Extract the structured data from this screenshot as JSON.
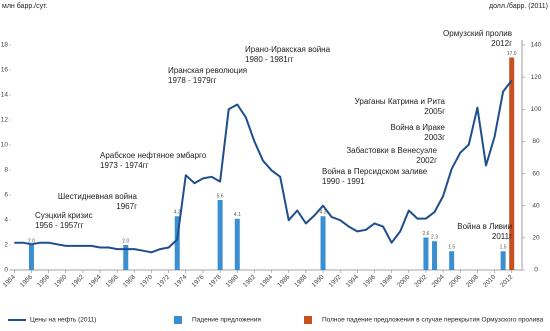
{
  "chart_data": {
    "type": "combo",
    "y_label": "млн барр./сут.",
    "y2_label": "долл./барр. (2011)",
    "xlim": [
      1953.5,
      2013.2
    ],
    "xticks": [
      1954,
      1956,
      1958,
      1960,
      1962,
      1964,
      1966,
      1968,
      1970,
      1972,
      1974,
      1976,
      1978,
      1980,
      1982,
      1984,
      1986,
      1988,
      1990,
      1992,
      1994,
      1996,
      1998,
      2000,
      2002,
      2004,
      2006,
      2008,
      2010,
      2012
    ],
    "ylim": [
      0,
      18
    ],
    "yticks": [
      0,
      2,
      4,
      6,
      8,
      10,
      12,
      14,
      16,
      18
    ],
    "y2lim": [
      0,
      140
    ],
    "y2ticks": [
      0,
      20,
      40,
      60,
      80,
      100,
      120,
      140
    ],
    "series": [
      {
        "name": "Цены на нефть (2011)",
        "type": "line",
        "axis": "y2",
        "color": "#1f4e8c",
        "x": [
          1954,
          1955,
          1956,
          1957,
          1958,
          1959,
          1960,
          1961,
          1962,
          1963,
          1964,
          1965,
          1966,
          1967,
          1968,
          1969,
          1970,
          1971,
          1972,
          1973,
          1974,
          1975,
          1976,
          1977,
          1978,
          1979,
          1980,
          1981,
          1982,
          1983,
          1984,
          1985,
          1986,
          1987,
          1988,
          1989,
          1990,
          1991,
          1992,
          1993,
          1994,
          1995,
          1996,
          1997,
          1998,
          1999,
          2000,
          2001,
          2002,
          2003,
          2004,
          2005,
          2006,
          2007,
          2008,
          2009,
          2010,
          2011,
          2012
        ],
        "values": [
          17,
          17,
          16,
          17,
          17,
          16,
          15,
          15,
          15,
          15,
          14,
          14,
          13,
          13,
          13,
          12,
          11,
          13,
          14,
          19,
          59,
          54,
          57,
          58,
          55,
          100,
          103,
          95,
          80,
          68,
          62,
          58,
          31,
          37,
          29,
          34,
          40,
          33,
          31,
          27,
          24,
          25,
          29,
          27,
          17,
          24,
          37,
          32,
          32,
          36,
          46,
          63,
          73,
          78,
          101,
          65,
          83,
          111,
          118
        ]
      },
      {
        "name": "Падение предложения",
        "type": "bar",
        "color": "#3a8fd0",
        "x": [
          1956,
          1967,
          1973,
          1978,
          1980,
          1990,
          2002,
          2003,
          2005,
          2011
        ],
        "values": [
          2.0,
          2.0,
          4.3,
          5.6,
          4.1,
          4.3,
          2.6,
          2.3,
          1.5,
          1.5
        ],
        "value_labels": [
          "2.0",
          "2.0",
          "4.3",
          "5.6",
          "4.1",
          "4.3",
          "2.6",
          "2.3",
          "1.5",
          "1.5"
        ]
      },
      {
        "name": "Полное падение предложения в случае перекрытия Ормузского пролива",
        "type": "bar",
        "color": "#c8501e",
        "x": [
          2012
        ],
        "values": [
          17.0
        ],
        "value_labels": [
          "17.0"
        ]
      }
    ],
    "annotations": [
      [
        "Суэцкий кризис",
        "1956 - 1957гг"
      ],
      [
        "Шестидневная война",
        "1967г"
      ],
      [
        "Арабское нефтяное эмбарго",
        "1973 - 1974гг"
      ],
      [
        "Иранская революция",
        "1978 - 1979гг"
      ],
      [
        "Ирано-Иракская война",
        "1980 - 1981гг"
      ],
      [
        "Война в Персидском заливе",
        "1990 - 1991"
      ],
      [
        "Забастовки в Венесуэле",
        "2002г"
      ],
      [
        "Война в Ираке",
        "2003г"
      ],
      [
        "Ураганы Катрина и Рита",
        "2005г"
      ],
      [
        "Война в Ливии",
        "2011г"
      ],
      [
        "Ормузский пролив",
        "2012г"
      ]
    ]
  }
}
